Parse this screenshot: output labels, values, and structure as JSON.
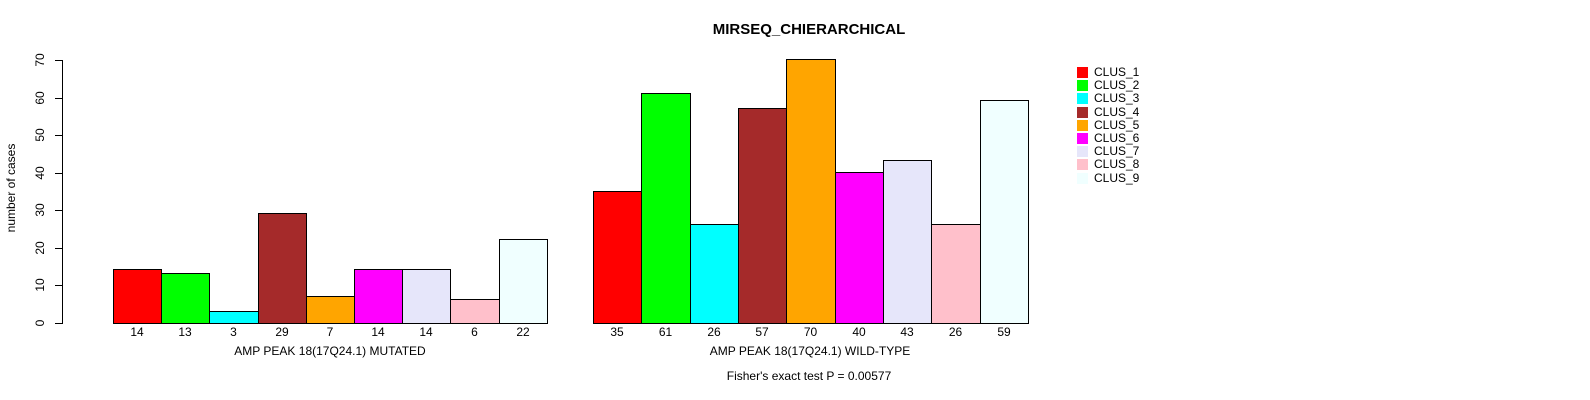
{
  "title": "MIRSEQ_CHIERARCHICAL",
  "chart_data": {
    "type": "bar",
    "title": "MIRSEQ_CHIERARCHICAL",
    "ylabel": "number of cases",
    "xlabel": "",
    "ylim": [
      0,
      70
    ],
    "yticks": [
      0,
      10,
      20,
      30,
      40,
      50,
      60,
      70
    ],
    "grid": false,
    "legend_position": "right",
    "bar_value_labels": true,
    "series_colors": [
      "#FF0000",
      "#00FF00",
      "#00FFFF",
      "#A52A2A",
      "#FFA500",
      "#FF00FF",
      "#E6E6FA",
      "#FFC0CB",
      "#F0FFFF"
    ],
    "groups": [
      {
        "label": "AMP PEAK 18(17Q24.1) MUTATED",
        "values": [
          14,
          13,
          3,
          29,
          7,
          14,
          14,
          6,
          22
        ]
      },
      {
        "label": "AMP PEAK 18(17Q24.1) WILD-TYPE",
        "values": [
          35,
          61,
          26,
          57,
          70,
          40,
          43,
          26,
          59
        ]
      }
    ],
    "legend": [
      {
        "label": "CLUS_1",
        "color": "#FF0000"
      },
      {
        "label": "CLUS_2",
        "color": "#00FF00"
      },
      {
        "label": "CLUS_3",
        "color": "#00FFFF"
      },
      {
        "label": "CLUS_4",
        "color": "#A52A2A"
      },
      {
        "label": "CLUS_5",
        "color": "#FFA500"
      },
      {
        "label": "CLUS_6",
        "color": "#FF00FF"
      },
      {
        "label": "CLUS_7",
        "color": "#E6E6FA"
      },
      {
        "label": "CLUS_8",
        "color": "#FFC0CB"
      },
      {
        "label": "CLUS_9",
        "color": "#F0FFFF"
      }
    ],
    "footnote": "Fisher's exact test P = 0.00577"
  }
}
